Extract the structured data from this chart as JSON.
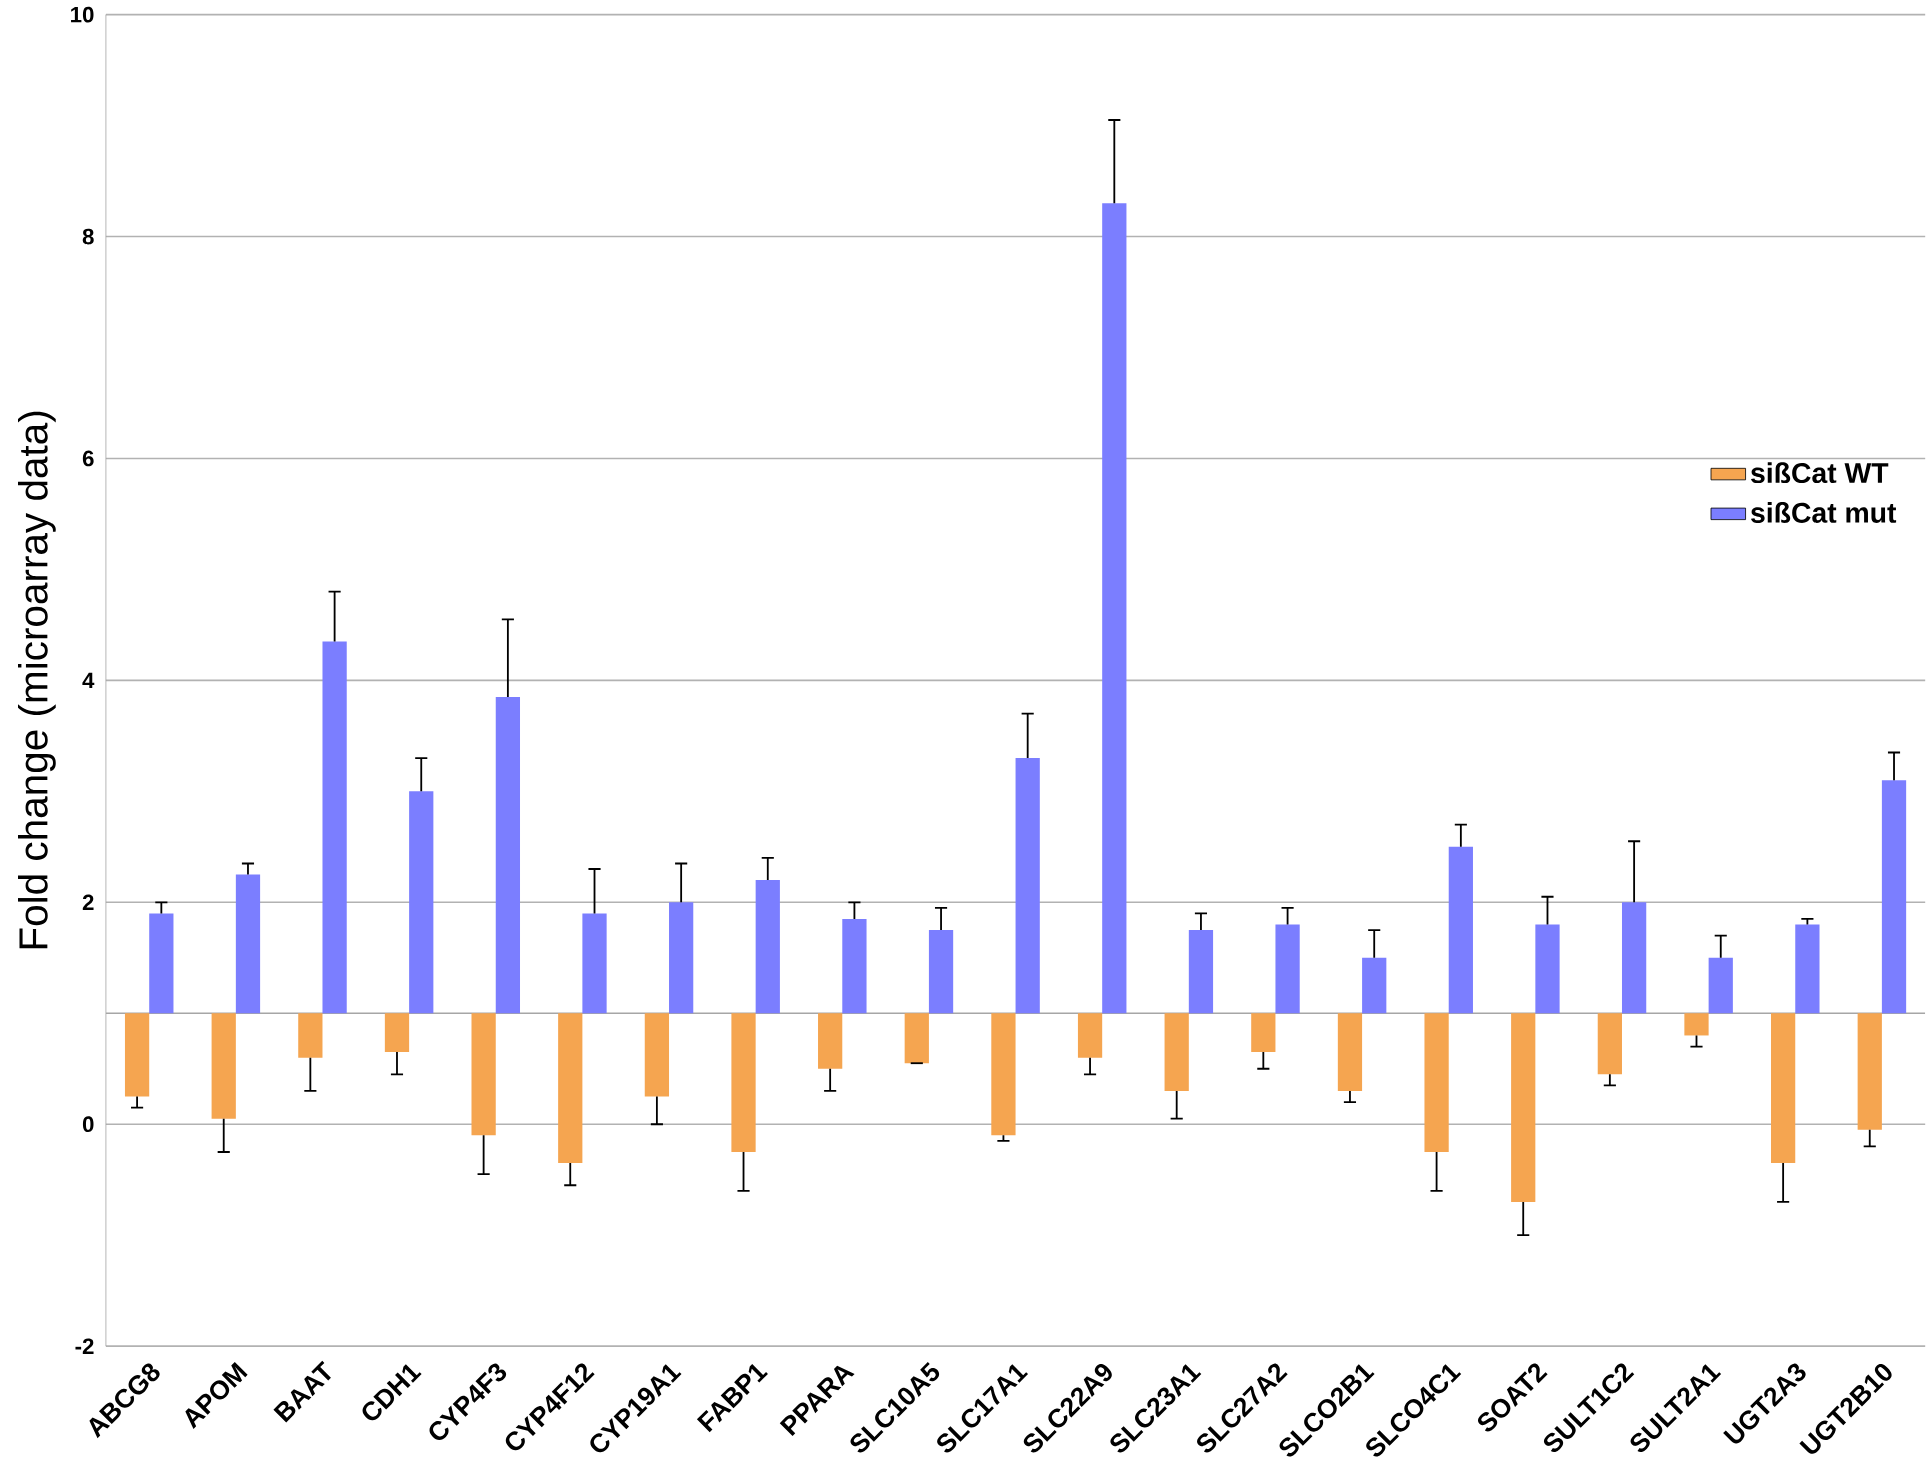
{
  "chart_data": {
    "type": "bar",
    "ylabel": "Fold change (microarray data)",
    "categories": [
      "ABCG8",
      "APOM",
      "BAAT",
      "CDH1",
      "CYP4F3",
      "CYP4F12",
      "CYP19A1",
      "FABP1",
      "PPARA",
      "SLC10A5",
      "SLC17A1",
      "SLC22A9",
      "SLC23A1",
      "SLC27A2",
      "SLCO2B1",
      "SLCO4C1",
      "SOAT2",
      "SULT1C2",
      "SULT2A1",
      "UGT2A3",
      "UGT2B10"
    ],
    "series": [
      {
        "name": "sißCat WT",
        "color": "#f5a550",
        "base": [
          1,
          1,
          1,
          1,
          1,
          1,
          1,
          1,
          1,
          1,
          1,
          1,
          1,
          1,
          1,
          1,
          1,
          1,
          1,
          1,
          1
        ],
        "values": [
          -0.75,
          -0.95,
          -0.4,
          -0.35,
          -1.1,
          -1.35,
          -0.75,
          -1.25,
          -0.5,
          -0.45,
          -1.1,
          -0.4,
          -0.7,
          -0.35,
          -0.7,
          -1.25,
          -1.7,
          -0.55,
          -0.2,
          -1.35,
          -1.05
        ],
        "errors": [
          [
            0.15,
            0.25
          ],
          [
            -0.25,
            0.05
          ],
          [
            0.3,
            0.6
          ],
          [
            0.45,
            0.65
          ],
          [
            -0.45,
            -0.1
          ],
          [
            -0.55,
            -0.35
          ],
          [
            0.0,
            0.25
          ],
          [
            -0.6,
            -0.25
          ],
          [
            0.3,
            0.5
          ],
          [
            0.55,
            0.55
          ],
          [
            -0.15,
            -0.1
          ],
          [
            0.45,
            0.6
          ],
          [
            0.05,
            0.3
          ],
          [
            0.5,
            0.65
          ],
          [
            0.2,
            0.3
          ],
          [
            -0.6,
            -0.25
          ],
          [
            -1.0,
            -0.7
          ],
          [
            0.35,
            0.45
          ],
          [
            0.7,
            0.8
          ],
          [
            -0.7,
            -0.35
          ],
          [
            -0.2,
            -0.05
          ]
        ]
      },
      {
        "name": "sißCat mut",
        "color": "#7b7eff",
        "base": [
          1,
          1,
          1,
          1,
          1,
          1,
          1,
          1,
          1,
          1,
          1,
          1,
          1,
          1,
          1,
          1,
          1,
          1,
          1,
          1,
          1
        ],
        "values": [
          0.9,
          1.25,
          3.35,
          2.0,
          2.85,
          0.9,
          1.0,
          1.2,
          0.85,
          0.75,
          2.3,
          7.3,
          0.75,
          0.8,
          0.5,
          1.5,
          0.8,
          1.0,
          0.5,
          0.8,
          2.1
        ],
        "errors": [
          [
            1.9,
            2.0
          ],
          [
            2.25,
            2.35
          ],
          [
            4.35,
            4.8
          ],
          [
            3.0,
            3.3
          ],
          [
            3.85,
            4.55
          ],
          [
            1.9,
            2.3
          ],
          [
            2.0,
            2.35
          ],
          [
            2.2,
            2.4
          ],
          [
            1.85,
            2.0
          ],
          [
            1.75,
            1.95
          ],
          [
            3.3,
            3.7
          ],
          [
            8.3,
            9.05
          ],
          [
            1.75,
            1.9
          ],
          [
            1.8,
            1.95
          ],
          [
            1.5,
            1.75
          ],
          [
            2.5,
            2.7
          ],
          [
            1.8,
            2.05
          ],
          [
            2.0,
            2.55
          ],
          [
            1.5,
            1.7
          ],
          [
            1.8,
            1.85
          ],
          [
            3.1,
            3.35
          ]
        ]
      }
    ],
    "ref_lines": [
      {
        "axis": "y",
        "value": 1,
        "color": "#a6a6a6"
      }
    ],
    "ylim": [
      -2,
      10
    ],
    "yticks": [
      -2,
      0,
      2,
      4,
      6,
      8,
      10
    ],
    "grid": "y",
    "legend": "right"
  }
}
